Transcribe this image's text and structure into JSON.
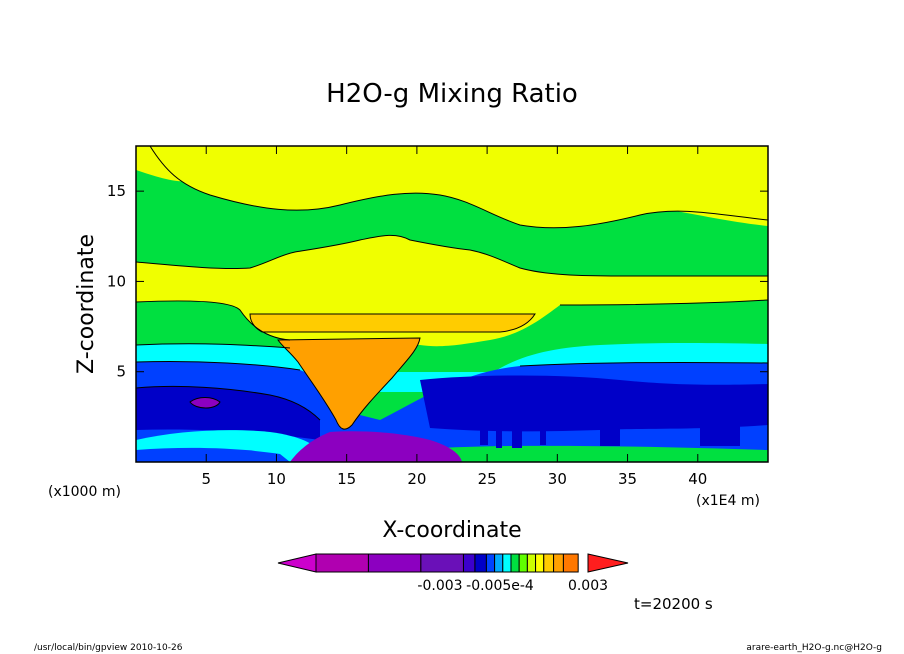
{
  "chart_data": {
    "type": "contour",
    "title": "H2O-g Mixing Ratio",
    "xlabel": "X-coordinate",
    "ylabel": "Z-coordinate",
    "x_unit_left": "(x1000 m)",
    "x_unit_right": "(x1E4 m)",
    "x_range": [
      0,
      45
    ],
    "y_range": [
      0,
      17.5
    ],
    "x_ticks": [
      5,
      10,
      15,
      20,
      25,
      30,
      35,
      40
    ],
    "y_ticks": [
      5,
      10,
      15
    ],
    "colorbar": {
      "colors": [
        "#cc00cc",
        "#b000b0",
        "#8c00c0",
        "#6a10b8",
        "#3c00cc",
        "#0000c8",
        "#0044ff",
        "#00aaff",
        "#00ffff",
        "#00e040",
        "#60ff00",
        "#ccff00",
        "#ffff00",
        "#ffcc00",
        "#ffa000",
        "#ff7800",
        "#ff1e1e"
      ],
      "labels": [
        "-0.003",
        "-0.005e-4",
        "0.003"
      ]
    },
    "layers": [
      {
        "name": "green",
        "color": "#00e040"
      },
      {
        "name": "yellow",
        "color": "#f0ff00"
      },
      {
        "name": "cyan",
        "color": "#00ffff"
      },
      {
        "name": "blue",
        "color": "#0040ff"
      },
      {
        "name": "dark-blue",
        "color": "#0000c8"
      },
      {
        "name": "orange",
        "color": "#ffa000"
      },
      {
        "name": "purple",
        "color": "#8c00c0"
      },
      {
        "name": "light-orange",
        "color": "#ffcc00"
      }
    ]
  },
  "time_label": "t=20200 s",
  "footer": {
    "left": "/usr/local/bin/gpview  2010-10-26",
    "right": "arare-earth_H2O-g.nc@H2O-g"
  }
}
